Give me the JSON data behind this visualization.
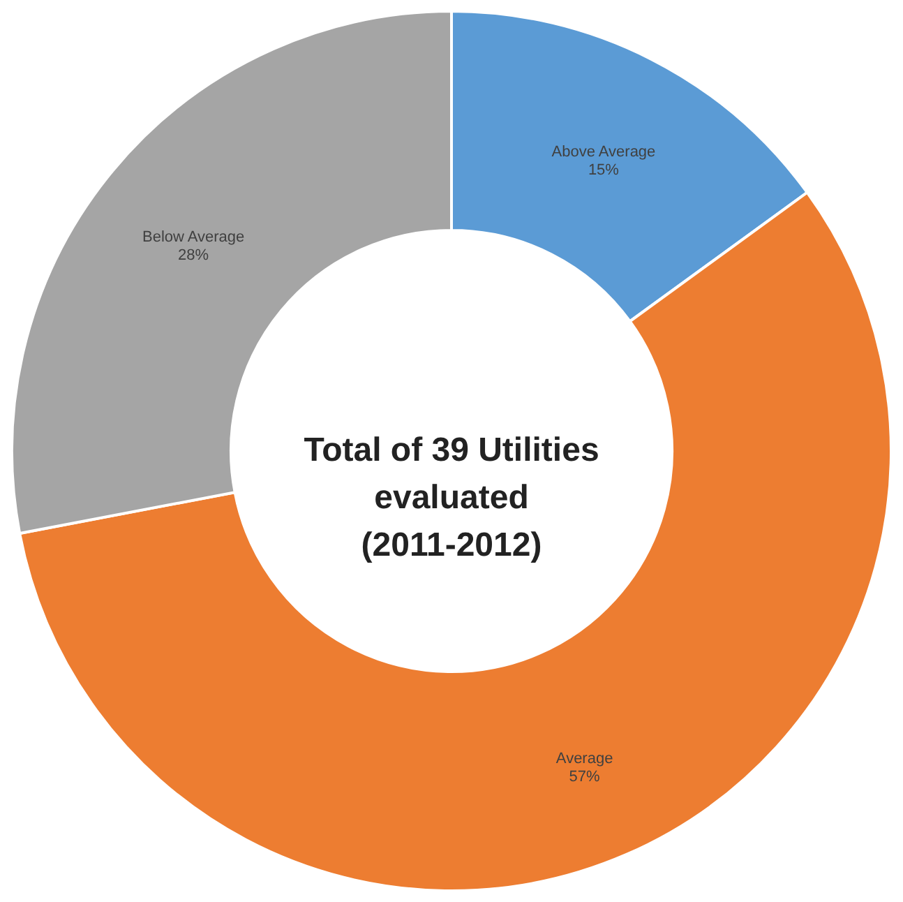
{
  "chart_data": {
    "type": "donut",
    "categories": [
      "Above Average",
      "Average",
      "Below Average"
    ],
    "values": [
      15,
      57,
      28
    ],
    "value_labels": [
      "15%",
      "57%",
      "28%"
    ],
    "colors": [
      "#5b9bd5",
      "#ed7d31",
      "#a5a5a5"
    ],
    "annotations": [
      "Total of 39 Utilities\nevaluated\n(2011-2012)"
    ]
  }
}
